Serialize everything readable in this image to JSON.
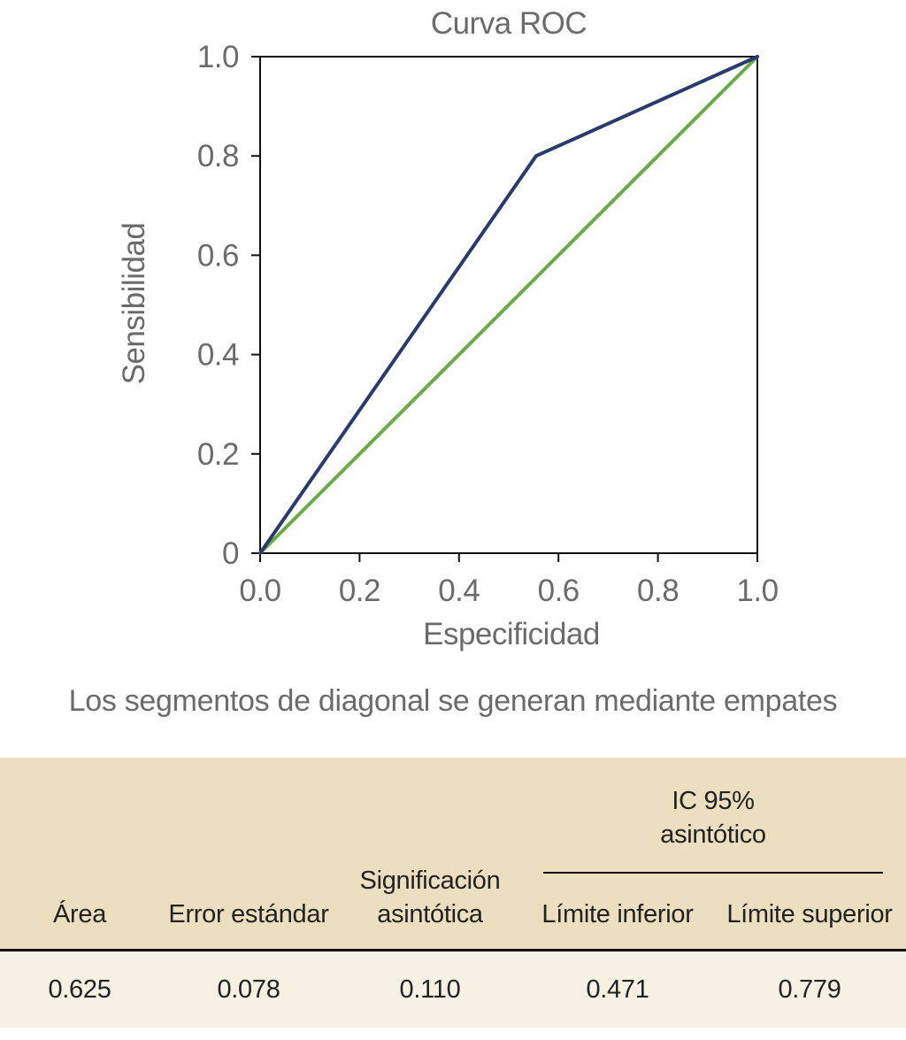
{
  "chart_data": {
    "type": "line",
    "title": "Curva ROC",
    "xlabel": "Especificidad",
    "ylabel": "Sensibilidad",
    "xlim": [
      0,
      1
    ],
    "ylim": [
      0,
      1
    ],
    "x_ticks": [
      "0.0",
      "0.2",
      "0.4",
      "0.6",
      "0.8",
      "1.0"
    ],
    "y_ticks": [
      "0",
      "0.2",
      "0.4",
      "0.6",
      "0.8",
      "1.0"
    ],
    "grid": false,
    "series": [
      {
        "color": "#2b3a6e",
        "points": [
          [
            0,
            0
          ],
          [
            0.555,
            0.8
          ],
          [
            1,
            1
          ]
        ]
      },
      {
        "color": "#6aab46",
        "points": [
          [
            0,
            0
          ],
          [
            1,
            1
          ]
        ]
      }
    ]
  },
  "footnote": "Los segmentos de diagonal se generan mediante empates",
  "table": {
    "group_header_line1": "IC 95%",
    "group_header_line2": "asintótico",
    "columns": {
      "area": "Área",
      "std_error": "Error estándar",
      "significance_line1": "Significación",
      "significance_line2": "asintótica",
      "lower": "Límite inferior",
      "upper": "Límite superior"
    },
    "values": {
      "area": "0.625",
      "std_error": "0.078",
      "significance": "0.110",
      "lower": "0.471",
      "upper": "0.779"
    }
  }
}
